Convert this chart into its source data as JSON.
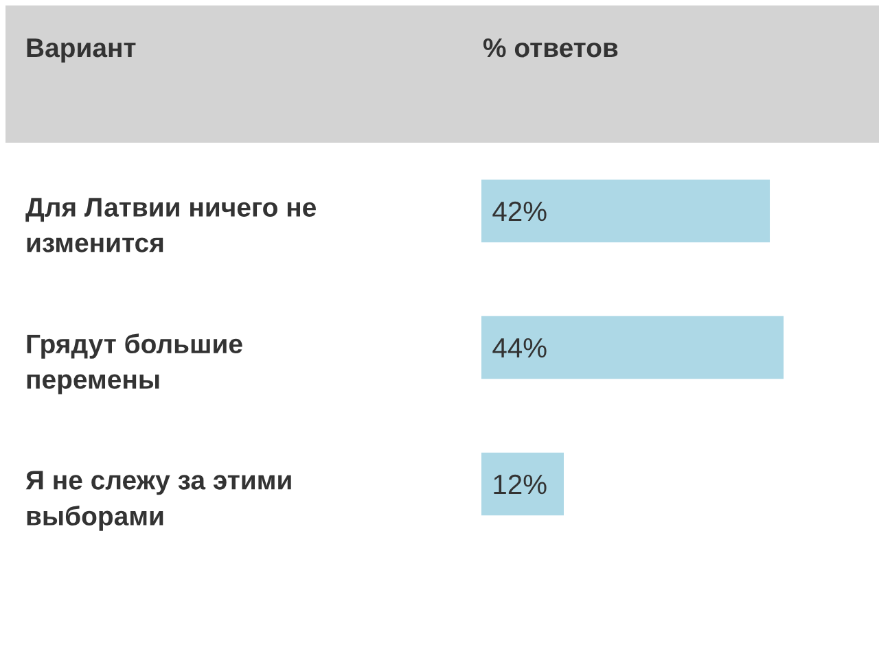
{
  "chart_data": {
    "type": "bar",
    "orientation": "horizontal",
    "ylabel": "Вариант",
    "xlabel": "% ответов",
    "categories": [
      "Для Латвии ничего не\nизменится",
      "Грядут большие\nперемены",
      "Я не слежу за этими\nвыборами"
    ],
    "values": [
      42,
      44,
      12
    ],
    "color": "#add8e6",
    "value_labels": [
      "42%",
      "44%",
      "12%"
    ]
  }
}
